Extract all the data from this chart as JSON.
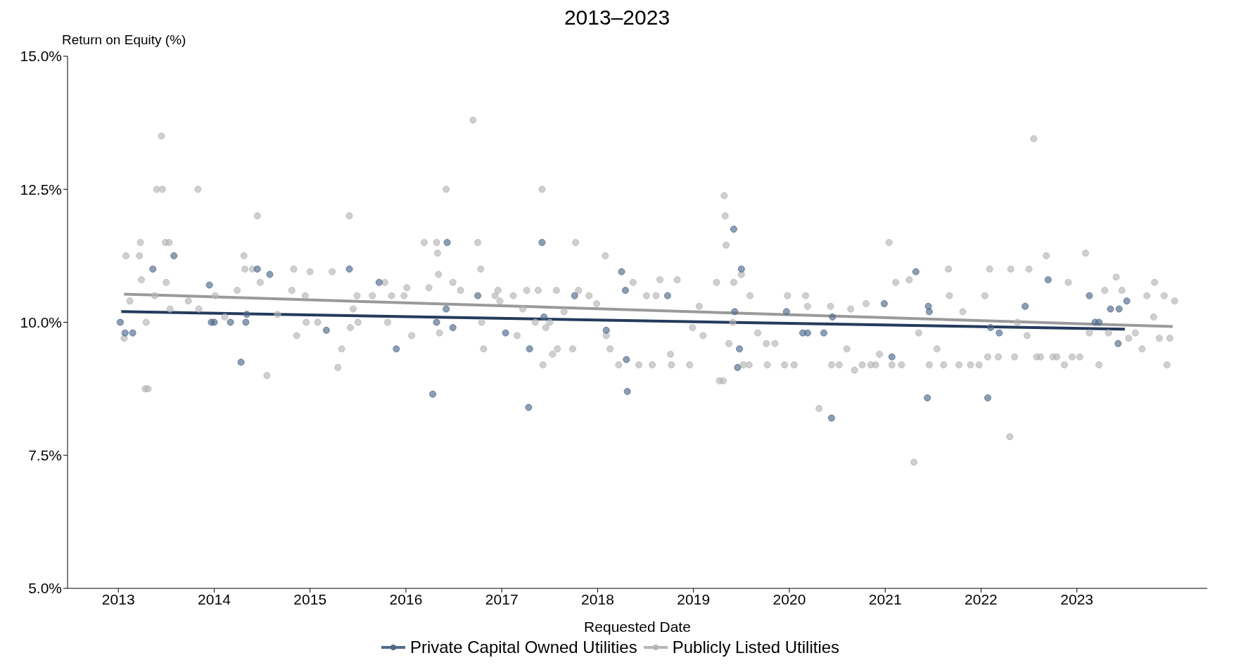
{
  "chart_data": {
    "type": "scatter",
    "title": "2013–2023",
    "xlabel": "Requested Date",
    "ylabel": "Return on Equity (%)",
    "xlim": [
      2012.47,
      2024.36
    ],
    "xticks": [
      2013,
      2014,
      2015,
      2016,
      2017,
      2018,
      2019,
      2020,
      2021,
      2022,
      2023
    ],
    "ylim": [
      5,
      15
    ],
    "yticks": [
      {
        "value": 5,
        "label": "5.0%"
      },
      {
        "value": 7.5,
        "label": "7.5%"
      },
      {
        "value": 10,
        "label": "10.0%"
      },
      {
        "value": 12.5,
        "label": "12.5%"
      },
      {
        "value": 15,
        "label": "15.0%"
      }
    ],
    "grid": false,
    "legend": "bottom",
    "marker": "circle",
    "line_style": "solid",
    "series": [
      {
        "name": "Private Capital Owned Utilities",
        "color": "#4f6a8c",
        "x": [
          2013.02,
          2013.07,
          2013.15,
          2013.36,
          2013.58,
          2013.95,
          2013.97,
          2014.0,
          2014.17,
          2014.28,
          2014.33,
          2014.34,
          2014.45,
          2014.58,
          2015.17,
          2015.41,
          2015.72,
          2015.9,
          2016.28,
          2016.32,
          2016.42,
          2016.43,
          2016.49,
          2016.75,
          2017.04,
          2017.29,
          2017.28,
          2017.42,
          2017.44,
          2017.76,
          2018.09,
          2018.25,
          2018.29,
          2018.3,
          2018.31,
          2018.73,
          2019.42,
          2019.43,
          2019.46,
          2019.48,
          2019.5,
          2019.97,
          2020.14,
          2020.19,
          2020.36,
          2020.44,
          2020.45,
          2020.99,
          2021.07,
          2021.32,
          2021.44,
          2021.45,
          2021.46,
          2022.07,
          2022.1,
          2022.19,
          2022.46,
          2022.7,
          2023.13,
          2023.19,
          2023.23,
          2023.35,
          2023.44,
          2023.43,
          2023.52
        ],
        "values": [
          10.0,
          9.8,
          9.8,
          11.0,
          11.25,
          10.7,
          10.0,
          10.0,
          10.0,
          9.25,
          10.0,
          10.15,
          11.0,
          10.9,
          9.85,
          11.0,
          10.75,
          9.5,
          8.65,
          10.0,
          10.25,
          11.5,
          9.9,
          10.5,
          9.8,
          9.5,
          8.4,
          11.5,
          10.1,
          10.5,
          9.85,
          10.95,
          10.6,
          9.3,
          8.7,
          10.5,
          11.75,
          10.2,
          9.15,
          9.5,
          11.0,
          10.2,
          9.8,
          9.8,
          9.8,
          8.2,
          10.1,
          10.35,
          9.35,
          10.95,
          8.58,
          10.3,
          10.2,
          8.58,
          9.9,
          9.8,
          10.3,
          10.8,
          10.5,
          10.0,
          10.0,
          10.25,
          10.25,
          9.6,
          10.4
        ]
      },
      {
        "name": "Publicly Listed Utilities",
        "color": "#b5b5b5",
        "x": [
          2013.06,
          2013.08,
          2013.12,
          2013.22,
          2013.23,
          2013.24,
          2013.28,
          2013.31,
          2013.29,
          2013.38,
          2013.4,
          2013.45,
          2013.46,
          2013.49,
          2013.53,
          2013.5,
          2013.54,
          2013.83,
          2013.73,
          2013.84,
          2014.01,
          2014.11,
          2014.24,
          2014.31,
          2014.32,
          2014.4,
          2014.45,
          2014.48,
          2014.55,
          2014.66,
          2014.81,
          2014.83,
          2014.86,
          2014.95,
          2015.0,
          2014.96,
          2015.08,
          2015.23,
          2015.29,
          2015.33,
          2015.41,
          2015.42,
          2015.45,
          2015.49,
          2015.5,
          2015.65,
          2015.78,
          2015.81,
          2015.85,
          2015.98,
          2016.01,
          2016.06,
          2016.19,
          2016.24,
          2016.32,
          2016.33,
          2016.34,
          2016.35,
          2016.42,
          2016.49,
          2016.57,
          2016.7,
          2016.75,
          2016.78,
          2016.81,
          2016.79,
          2016.93,
          2016.96,
          2016.98,
          2017.12,
          2017.16,
          2017.22,
          2017.26,
          2017.35,
          2017.38,
          2017.42,
          2017.43,
          2017.46,
          2017.5,
          2017.53,
          2017.57,
          2017.58,
          2017.65,
          2017.74,
          2017.77,
          2017.8,
          2017.91,
          2017.99,
          2018.08,
          2018.09,
          2018.13,
          2018.22,
          2018.37,
          2018.43,
          2018.51,
          2018.57,
          2018.61,
          2018.65,
          2018.76,
          2018.77,
          2018.83,
          2018.96,
          2018.99,
          2019.06,
          2019.1,
          2019.24,
          2019.27,
          2019.31,
          2019.32,
          2019.33,
          2019.34,
          2019.37,
          2019.41,
          2019.42,
          2019.5,
          2019.52,
          2019.58,
          2019.59,
          2019.67,
          2019.76,
          2019.77,
          2019.85,
          2019.95,
          2019.98,
          2020.05,
          2020.17,
          2020.19,
          2020.31,
          2020.43,
          2020.44,
          2020.52,
          2020.6,
          2020.64,
          2020.68,
          2020.76,
          2020.8,
          2020.85,
          2020.9,
          2020.94,
          2021.04,
          2021.07,
          2021.11,
          2021.17,
          2021.25,
          2021.3,
          2021.35,
          2021.46,
          2021.54,
          2021.61,
          2021.66,
          2021.67,
          2021.77,
          2021.81,
          2021.89,
          2021.98,
          2022.04,
          2022.07,
          2022.09,
          2022.18,
          2022.3,
          2022.31,
          2022.35,
          2022.38,
          2022.48,
          2022.5,
          2022.55,
          2022.58,
          2022.62,
          2022.68,
          2022.75,
          2022.79,
          2022.87,
          2022.91,
          2022.95,
          2023.03,
          2023.09,
          2023.13,
          2023.23,
          2023.29,
          2023.33,
          2023.41,
          2023.47,
          2023.54,
          2023.61,
          2023.68,
          2023.73,
          2023.8,
          2023.81,
          2023.86,
          2023.91,
          2023.94,
          2023.97,
          2024.02
        ],
        "values": [
          9.7,
          11.25,
          10.4,
          11.25,
          11.5,
          10.8,
          8.75,
          8.75,
          10.0,
          10.5,
          12.5,
          13.5,
          12.5,
          11.5,
          11.5,
          10.75,
          10.25,
          12.5,
          10.4,
          10.25,
          10.5,
          10.1,
          10.6,
          11.25,
          11.0,
          11.0,
          12.0,
          10.75,
          9.0,
          10.15,
          10.6,
          11.0,
          9.75,
          10.5,
          10.95,
          10.0,
          10.0,
          10.95,
          9.15,
          9.5,
          12.0,
          9.9,
          10.25,
          10.5,
          10.0,
          10.5,
          10.75,
          10.0,
          10.5,
          10.5,
          10.65,
          9.75,
          11.5,
          10.65,
          11.5,
          11.3,
          10.9,
          9.8,
          12.5,
          10.75,
          10.6,
          13.8,
          11.5,
          11.0,
          9.5,
          10.0,
          10.5,
          10.6,
          10.4,
          10.5,
          9.75,
          10.25,
          10.6,
          10.0,
          10.6,
          12.5,
          9.2,
          9.9,
          10.0,
          9.4,
          10.6,
          9.5,
          10.2,
          9.5,
          11.5,
          10.6,
          10.5,
          10.35,
          11.25,
          9.75,
          9.5,
          9.2,
          10.75,
          9.2,
          10.5,
          9.2,
          10.5,
          10.8,
          9.4,
          9.2,
          10.8,
          9.2,
          9.9,
          10.3,
          9.75,
          10.75,
          8.9,
          8.9,
          12.38,
          12.0,
          11.45,
          9.6,
          10.0,
          10.75,
          10.9,
          9.2,
          9.2,
          10.5,
          9.8,
          9.6,
          9.2,
          9.6,
          9.2,
          10.5,
          9.2,
          10.5,
          10.3,
          8.38,
          10.3,
          9.2,
          9.2,
          9.5,
          10.25,
          9.1,
          9.2,
          10.35,
          9.2,
          9.2,
          9.4,
          11.5,
          9.2,
          10.75,
          9.2,
          10.8,
          7.37,
          9.8,
          9.2,
          9.5,
          9.2,
          11.0,
          10.5,
          9.2,
          10.2,
          9.2,
          9.2,
          10.5,
          9.35,
          11.0,
          9.35,
          7.85,
          11.0,
          9.35,
          10.0,
          9.75,
          11.0,
          13.45,
          9.35,
          9.35,
          11.25,
          9.35,
          9.35,
          9.2,
          10.75,
          9.35,
          9.35,
          11.3,
          9.8,
          9.2,
          10.6,
          9.8,
          10.85,
          10.6,
          9.7,
          9.8,
          9.5,
          10.5,
          10.1,
          10.75,
          9.7,
          10.5,
          9.2,
          9.7,
          10.4
        ]
      },
      {
        "type": "line",
        "marker": "none",
        "color": "#243b5c",
        "x": [
          2013.03,
          2023.5
        ],
        "values": [
          10.2,
          9.87
        ]
      },
      {
        "type": "line",
        "marker": "none",
        "color": "#9a9a9a",
        "x": [
          2013.06,
          2024.0
        ],
        "values": [
          10.53,
          9.92
        ]
      }
    ]
  }
}
